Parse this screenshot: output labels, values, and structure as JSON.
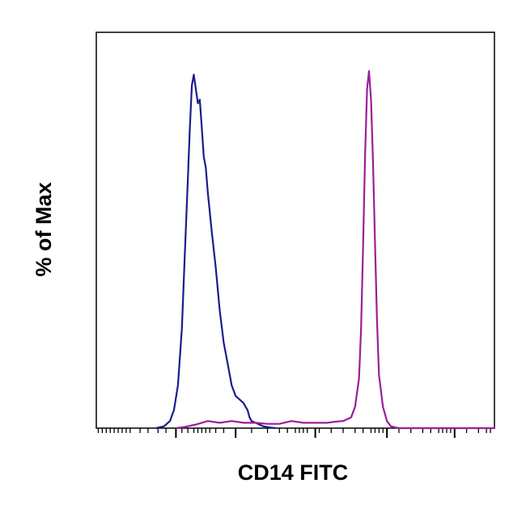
{
  "chart_data": {
    "type": "line",
    "title": "",
    "xlabel": "CD14 FITC",
    "ylabel": "% of Max",
    "x_scale": "log (biexponential display, tick labels not shown)",
    "xlim": [
      0,
      1
    ],
    "ylim": [
      0,
      100
    ],
    "grid": false,
    "legend": "none",
    "series": [
      {
        "color": "#1c1c8c",
        "x": [
          0.15,
          0.17,
          0.185,
          0.195,
          0.205,
          0.215,
          0.22,
          0.225,
          0.23,
          0.235,
          0.24,
          0.245,
          0.25,
          0.255,
          0.26,
          0.265,
          0.27,
          0.275,
          0.28,
          0.29,
          0.3,
          0.31,
          0.32,
          0.33,
          0.34,
          0.35,
          0.36,
          0.37,
          0.38,
          0.385,
          0.39,
          0.4,
          0.41,
          0.42,
          0.435,
          0.45
        ],
        "y": [
          0,
          0.5,
          2,
          5,
          12,
          28,
          42,
          56,
          70,
          84,
          96,
          99,
          95,
          91,
          92,
          84,
          76,
          73,
          66,
          55,
          45,
          33,
          24,
          18,
          12,
          9,
          8,
          7,
          5,
          3,
          2,
          1.5,
          1,
          0.5,
          0.2,
          0
        ]
      },
      {
        "color": "#9b1e9b",
        "x": [
          0.2,
          0.22,
          0.25,
          0.28,
          0.31,
          0.34,
          0.37,
          0.4,
          0.43,
          0.46,
          0.49,
          0.52,
          0.55,
          0.58,
          0.6,
          0.62,
          0.64,
          0.65,
          0.66,
          0.665,
          0.67,
          0.675,
          0.68,
          0.685,
          0.69,
          0.695,
          0.7,
          0.705,
          0.71,
          0.72,
          0.73,
          0.74,
          0.76,
          0.8,
          0.9,
          1.0
        ],
        "y": [
          0,
          0.3,
          1,
          2,
          1.5,
          2,
          1.5,
          1.5,
          1.2,
          1.2,
          2,
          1.5,
          1.5,
          1.5,
          1.8,
          2,
          3,
          6,
          14,
          28,
          50,
          76,
          95,
          100,
          92,
          75,
          52,
          30,
          15,
          6,
          2,
          0.5,
          0,
          0,
          0,
          0
        ]
      }
    ],
    "x_ticks": {
      "major": [
        0.2,
        0.35,
        0.55,
        0.73,
        0.9
      ],
      "minor": [
        0.005,
        0.015,
        0.025,
        0.035,
        0.045,
        0.055,
        0.065,
        0.075,
        0.085,
        0.11,
        0.13,
        0.155,
        0.175,
        0.215,
        0.23,
        0.245,
        0.255,
        0.265,
        0.275,
        0.285,
        0.3,
        0.32,
        0.39,
        0.43,
        0.46,
        0.48,
        0.5,
        0.51,
        0.52,
        0.53,
        0.56,
        0.59,
        0.62,
        0.65,
        0.67,
        0.69,
        0.7,
        0.71,
        0.72,
        0.76,
        0.79,
        0.82,
        0.84,
        0.86,
        0.87,
        0.88,
        0.89,
        0.93,
        0.96,
        0.98,
        0.99
      ]
    }
  }
}
